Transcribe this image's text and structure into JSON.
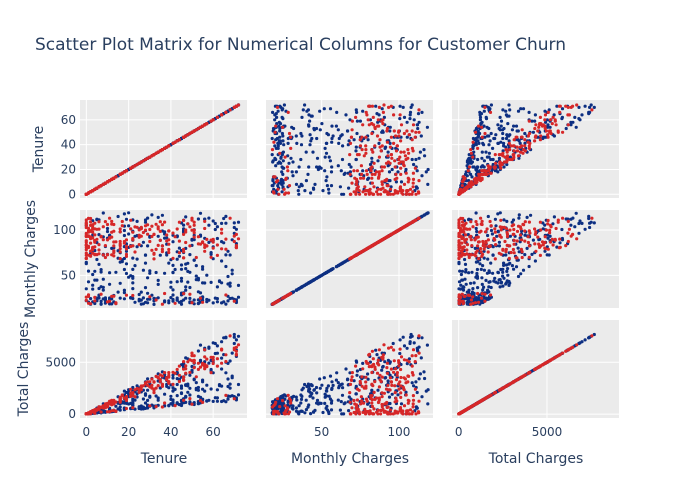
{
  "chart_data": {
    "type": "scatter_matrix",
    "title": "Scatter Plot Matrix for Numerical Columns for Customer Churn",
    "dimensions": [
      {
        "name": "Tenure",
        "label": "Tenure",
        "range": [
          -3,
          76
        ],
        "ticks": [
          0,
          20,
          40,
          60
        ]
      },
      {
        "name": "Monthly Charges",
        "label": "Monthly Charges",
        "range": [
          14,
          122
        ],
        "ticks": [
          50,
          100
        ]
      },
      {
        "name": "Total Charges",
        "label": "Total Charges",
        "range": [
          -380,
          9080
        ],
        "ticks": [
          0,
          5000
        ]
      }
    ],
    "series": [
      {
        "key": "no_churn",
        "color": "#0d2f82"
      },
      {
        "key": "churn",
        "color": "#d62728"
      }
    ],
    "observed_ranges": {
      "tenure": [
        0,
        72
      ],
      "monthly_charges": [
        18,
        119
      ],
      "total_charges": [
        18,
        8685
      ]
    },
    "background": "#ebebeb",
    "grid": true,
    "legend": "none"
  }
}
